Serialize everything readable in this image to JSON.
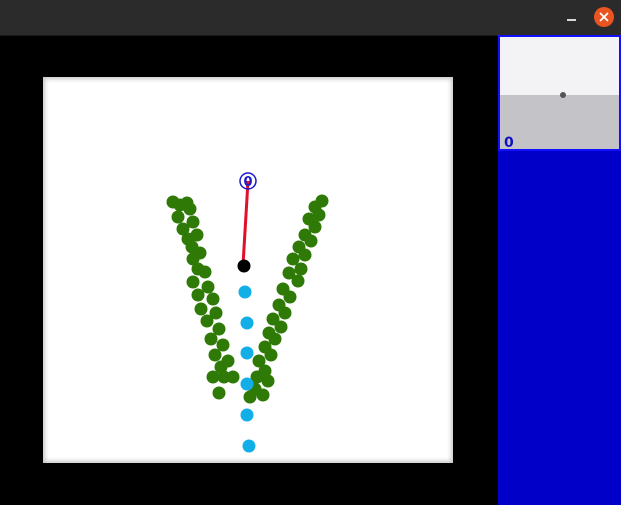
{
  "window": {
    "title": "",
    "minimize_icon": "minimize-icon",
    "close_icon": "close-icon",
    "close_color": "#e95420"
  },
  "board": {
    "target_marker_label": "0",
    "background_color": "#ffffff",
    "trail_color": "#2f7a06",
    "path_color": "#12aee8",
    "aim_line_color": "#e0102a",
    "ball_color": "#000000",
    "target_color": "#1a1ad0"
  },
  "side_panel": {
    "background_color": "#0000c8",
    "thumbnails": [
      {
        "label": "0"
      }
    ]
  }
}
